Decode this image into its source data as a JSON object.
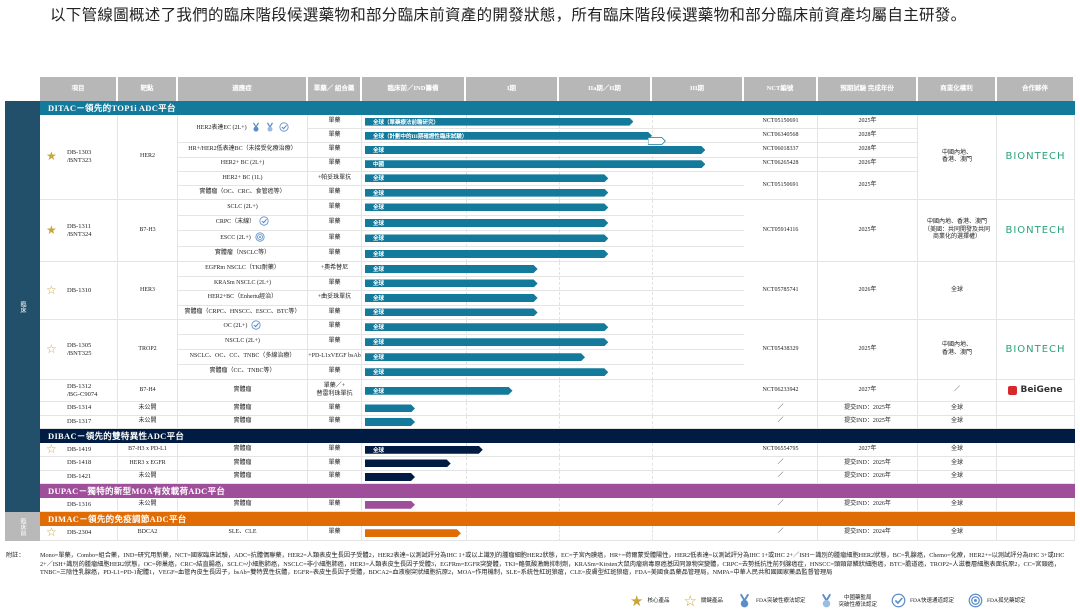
{
  "intro": "以下管線圖概述了我們的臨床階段候選藥物和部分臨床前資產的開發狀態，所有臨床階段候選藥物和部分臨床前資產均屬自主研發。",
  "side_labels": {
    "clinical": "臨床",
    "preclinical": "臨床前"
  },
  "headers": [
    "項目",
    "靶點",
    "適應症",
    "單藥／\n組合藥",
    "臨床前／IND籌備",
    "I期",
    "IIa期／II期",
    "III期",
    "NCT編號",
    "預期試驗\n完成年份",
    "商業化權利",
    "合作夥伴"
  ],
  "colors": {
    "header": "#b7b7b7",
    "side": "#22506a",
    "star": "#c9a53a"
  },
  "progress_scale": "phases completed: 1=臨床前／IND籌備, 2=I期, 3=IIa期／II期, 4=III期",
  "platforms": [
    {
      "name": "DITAC－領先的TOP1i ADC平台",
      "color": "#147a9c",
      "products": [
        {
          "id": "DB-1303\n/BNT323",
          "star": "core",
          "target": "HER2",
          "rights": "中國內地、\n香港、澳門",
          "partner": "BIONTECH",
          "rows": [
            {
              "indication": "HER2表達EC (2L+)",
              "icons": [
                "fda-breakthrough",
                "nmpa-breakthrough",
                "fda-fast-track"
              ],
              "combo": "單藥",
              "bar_label": "全球（單藥療法前瞻研究）",
              "progress": 2.8,
              "nct": "NCT05150691",
              "year": "2025年"
            },
            {
              "combo": "單藥",
              "bar_label": "全球（計劃中的III期確證性臨床試驗）",
              "progress": 3.0,
              "planned_to": 3.15,
              "nct": "NCT06340568",
              "year": "2028年"
            },
            {
              "indication": "HR+/HER2低表達BC（未接受化療治療）",
              "combo": "單藥",
              "bar_label": "全球",
              "progress": 3.58,
              "nct": "NCT06018337",
              "year": "2028年"
            },
            {
              "indication": "HER2+ BC (2L+)",
              "combo": "單藥",
              "bar_label": "中國",
              "progress": 3.58,
              "nct": "NCT06265428",
              "year": "2026年"
            },
            {
              "indication": "HER2+ BC (1L)",
              "combo": "+帕妥珠單抗",
              "bar_label": "全球",
              "progress": 2.53,
              "nct": "NCT05150691",
              "year": "2025年"
            },
            {
              "indication": "實體瘤（OC、CRC、食管癌等）",
              "combo": "單藥",
              "bar_label": "全球",
              "progress": 2.53
            }
          ]
        },
        {
          "id": "DB-1311\n/BNT324",
          "star": "core",
          "target": "B7-H3",
          "rights": "中國內地、香港、澳門\n（美國：共同開發及共同\n商業化的選擇權）",
          "partner": "BIONTECH",
          "rows": [
            {
              "indication": "SCLC (2L+)",
              "combo": "單藥",
              "bar_label": "全球",
              "progress": 2.53,
              "nct": "NCT05914116",
              "year": "2025年"
            },
            {
              "indication": "CRPC（末線）",
              "icons": [
                "fda-fast-track"
              ],
              "combo": "單藥",
              "bar_label": "全球",
              "progress": 2.53
            },
            {
              "indication": "ESCC (2L+)",
              "icons": [
                "fda-orphan"
              ],
              "combo": "單藥",
              "bar_label": "全球",
              "progress": 2.53
            },
            {
              "indication": "實體瘤（NSCLC等）",
              "combo": "單藥",
              "bar_label": "全球",
              "progress": 2.53
            }
          ]
        },
        {
          "id": "DB-1310",
          "star": "key",
          "target": "HER3",
          "rights": "全球",
          "partner": "",
          "rows": [
            {
              "indication": "EGFRm NSCLC（TKI耐藥）",
              "combo": "+奧希替尼",
              "bar_label": "全球",
              "progress": 1.77,
              "nct": "NCT05785741",
              "year": "2026年"
            },
            {
              "indication": "KRASm NSCLC (2L+)",
              "combo": "單藥",
              "bar_label": "全球",
              "progress": 1.77
            },
            {
              "indication": "HER2+BC（Enhertu經治）",
              "combo": "+曲妥珠單抗",
              "bar_label": "全球",
              "progress": 1.77
            },
            {
              "indication": "實體瘤（CRPC、HNSCC、ESCC、BTC等）",
              "combo": "單藥",
              "bar_label": "全球",
              "progress": 1.77
            }
          ]
        },
        {
          "id": "DB-1305\n/BNT325",
          "star": "key",
          "target": "TROP2",
          "rights": "中國內地、\n香港、澳門",
          "partner": "BIONTECH",
          "rows": [
            {
              "indication": "OC (2L+)",
              "icons": [
                "fda-fast-track"
              ],
              "combo": "單藥",
              "bar_label": "全球",
              "progress": 2.53,
              "nct": "NCT05438329",
              "year": "2025年"
            },
            {
              "indication": "NSCLC (2L+)",
              "combo": "單藥",
              "bar_label": "全球",
              "progress": 2.53
            },
            {
              "indication": "NSCLC、OC、CC、TNBC（多線治療）",
              "combo": "+PD-L1xVEGF bsAb",
              "bar_label": "全球",
              "progress": 2.28
            },
            {
              "indication": "實體瘤（CC、TNBC等）",
              "combo": "單藥",
              "bar_label": "全球",
              "progress": 2.53
            }
          ]
        },
        {
          "id": "DB-1312\n/BG-C9074",
          "star": "",
          "target": "B7-H4",
          "rights": "／",
          "partner": "BeiGene",
          "rows": [
            {
              "indication": "實體瘤",
              "combo": "單藥／+\n替雷利珠單抗",
              "bar_label": "全球",
              "progress": 1.5,
              "nct": "NCT06233942",
              "year": "2027年"
            }
          ]
        },
        {
          "id": "DB-1314",
          "star": "",
          "target": "未公開",
          "rights": "全球",
          "partner": "",
          "rows": [
            {
              "indication": "實體瘤",
              "combo": "單藥",
              "bar_label": "",
              "progress": 0.5,
              "nct": "／",
              "year": "提交IND：2025年"
            }
          ]
        },
        {
          "id": "DB-1317",
          "star": "",
          "target": "未公開",
          "rights": "全球",
          "partner": "",
          "rows": [
            {
              "indication": "實體瘤",
              "combo": "單藥",
              "bar_label": "",
              "progress": 0.5,
              "nct": "／",
              "year": "提交IND：2025年"
            }
          ]
        }
      ]
    },
    {
      "name": "DIBAC－領先的雙特異性ADC平台",
      "color": "#001c42",
      "products": [
        {
          "id": "DB-1419",
          "star": "key",
          "target": "B7-H3 x PD-L1",
          "rights": "全球",
          "partner": "",
          "rows": [
            {
              "indication": "實體瘤",
              "combo": "單藥",
              "bar_label": "全球",
              "progress": 1.18,
              "nct": "NCT06554795",
              "year": "2027年"
            }
          ]
        },
        {
          "id": "DB-1418",
          "star": "",
          "target": "HER3 x EGFR",
          "rights": "全球",
          "partner": "",
          "rows": [
            {
              "indication": "實體瘤",
              "combo": "單藥",
              "bar_label": "",
              "progress": 0.85,
              "nct": "／",
              "year": "提交IND：2025年"
            }
          ]
        },
        {
          "id": "DB-1421",
          "star": "",
          "target": "未公開",
          "rights": "全球",
          "partner": "",
          "rows": [
            {
              "indication": "實體瘤",
              "combo": "單藥",
              "bar_label": "",
              "progress": 0.5,
              "nct": "／",
              "year": "提交IND：2026年"
            }
          ]
        }
      ]
    },
    {
      "name": "DUPAC－獨特的新型MOA有效載荷ADC平台",
      "color": "#9f4f99",
      "products": [
        {
          "id": "DB-1316",
          "star": "",
          "target": "未公開",
          "rights": "全球",
          "partner": "",
          "rows": [
            {
              "indication": "實體瘤",
              "combo": "單藥",
              "bar_label": "",
              "progress": 0.5,
              "nct": "／",
              "year": "提交IND：2026年"
            }
          ]
        }
      ]
    },
    {
      "name": "DIMAC－領先的免疫調節ADC平台",
      "color": "#e06c06",
      "products": [
        {
          "id": "DB-2304",
          "star": "key",
          "target": "BDCA2",
          "rights": "全球",
          "partner": "",
          "rows": [
            {
              "indication": "SLE、CLE",
              "combo": "單藥",
              "bar_label": "",
              "progress": 0.95,
              "nct": "／",
              "year": "提交IND：2024年"
            }
          ]
        }
      ]
    }
  ],
  "notes": {
    "label": "附註：",
    "text": "Mono=單藥，Combo=組合藥，IND=研究用新藥，NCT=國家臨床試驗，ADC=抗體偶聯藥，HER2=人類表皮生長因子受體2，HER2表達=以測試評分為IHC 1+或以上識別的腫瘤細胞HER2狀態，EC=子宮內膜癌，HR+=荷爾蒙受體陽性，HER2低表達=以測試評分為IHC 1+或IHC 2+／ISH－識別的腫瘤細胞HER2狀態，BC=乳腺癌，Chemo=化療，HER2+=以測試評分為IHC 3+或IHC 2+／ISH+識別的腫瘤細胞HER2狀態，OC=卵巢癌，CRC=結直腸癌，SCLC=小細胞肺癌，NSCLC=非小細胞肺癌，HER3=人類表皮生長因子受體3，EGFRm=EGFR突變體，TKI=酪氨酸激酶抑制劑，KRASm=Kirsten大鼠肉瘤病毒原癌基因同源物突變體，CRPC=去勢抵抗性前列腺癌症，HNSCC=頭頸部鱗狀細胞癌，BTC=膽道癌，TROP2=人滋養層細胞表面抗原2，CC=宮頸癌，TNBC=三陰性乳腺癌，PD-L1=PD-1配體1，VEGF=血管內皮生長因子，bsAb=雙特異性抗體，EGFR=表皮生長因子受體，BDCA2=血液樹突狀細胞抗原2，MOA=作用機制，SLE=系統性紅斑狼瘡，CLE=皮膚型紅斑狼瘡，FDA=美國食品藥品管理局，NMPA=中華人民共和國國家藥品監督管理局"
  },
  "legend": [
    {
      "icon": "core-star",
      "label": "核心產品"
    },
    {
      "icon": "key-star",
      "label": "關鍵產品"
    },
    {
      "icon": "fda-breakthrough",
      "label": "FDA突破性療法認定"
    },
    {
      "icon": "nmpa-breakthrough",
      "label": "中國藥監局\n突破性療法認定"
    },
    {
      "icon": "fda-fast-track",
      "label": "FDA快速通道認定"
    },
    {
      "icon": "fda-orphan",
      "label": "FDA孤兒藥認定"
    }
  ]
}
